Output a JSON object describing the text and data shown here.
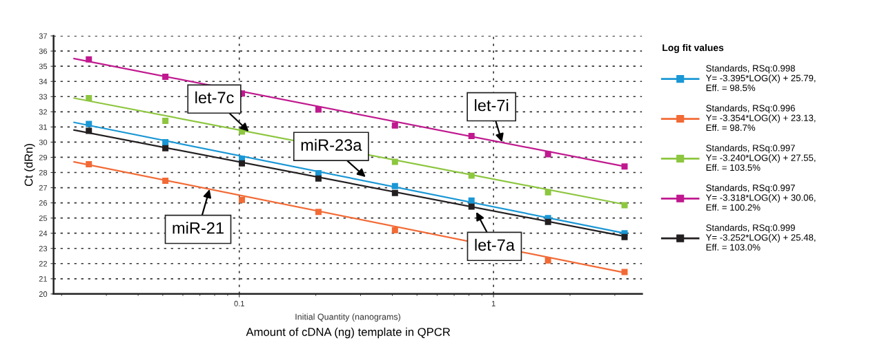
{
  "chart_data": {
    "type": "scatter",
    "xlabel": "Initial Quantity (nanograms)",
    "ylabel": "Ct (dRn)",
    "legend_title": "Log fit values",
    "annotations": [
      "Amount of cDNA (ng) template in QPCR",
      {
        "text": "let-7c",
        "x": 0.109,
        "y": 30.7
      },
      {
        "text": "let-7i",
        "x": 1.08,
        "y": 30.0
      },
      {
        "text": "miR-23a",
        "x": 0.314,
        "y": 27.7
      },
      {
        "text": "miR-21",
        "x": 0.0764,
        "y": 26.9
      },
      {
        "text": "let-7a",
        "x": 0.855,
        "y": 25.4
      }
    ],
    "x": [
      0.0224,
      0.0256,
      0.0512,
      0.1024,
      0.2048,
      0.4096,
      0.8192,
      1.6384,
      3.2768
    ],
    "log": "x",
    "xlim": [
      0.0186,
      3.84
    ],
    "xticks": [
      0.1,
      1
    ],
    "ylim": [
      20,
      37
    ],
    "yticks": [
      20,
      21,
      22,
      23,
      24,
      25,
      26,
      27,
      28,
      29,
      30,
      31,
      32,
      33,
      34,
      35,
      36,
      37
    ],
    "grid": true,
    "legend": "right",
    "series": [
      {
        "name": "Standards, RSq:0.998\nY= -3.395*LOG(X) + 25.79,\nEff. = 98.5%",
        "color": "#1a97d5",
        "marker": "square",
        "values": [
          null,
          31.2,
          30.0,
          28.9,
          27.95,
          27.1,
          26.15,
          25.0,
          24.0
        ]
      },
      {
        "name": "Standards, RSq:0.996\nY= -3.354*LOG(X) + 23.13,\nEff. = 98.7%",
        "color": "#f26a35",
        "marker": "square",
        "values": [
          null,
          28.55,
          27.45,
          26.2,
          25.4,
          24.2,
          null,
          22.2,
          21.45
        ]
      },
      {
        "name": "Standards, RSq:0.997\nY= -3.240*LOG(X) + 27.55,\nEff. = 103.5%",
        "color": "#8dc63f",
        "marker": "square",
        "values": [
          null,
          32.9,
          31.4,
          30.7,
          null,
          28.7,
          27.8,
          26.7,
          25.85
        ]
      },
      {
        "name": "Standards, RSq:0.997\nY= -3.318*LOG(X) + 30.06,\nEff. = 100.2%",
        "color": "#c0198f",
        "marker": "square",
        "values": [
          null,
          35.45,
          34.3,
          33.2,
          32.15,
          31.1,
          30.4,
          29.2,
          28.4
        ]
      },
      {
        "name": "Standards, RSq:0.999\nY= -3.252*LOG(X) + 25.48,\nEff. = 103.0%",
        "color": "#231f20",
        "marker": "square",
        "values": [
          null,
          30.75,
          29.6,
          28.6,
          27.6,
          26.65,
          25.75,
          24.75,
          23.75
        ]
      },
      {
        "type": "line",
        "color": "#1a97d5",
        "values": [
          31.3,
          null,
          null,
          null,
          null,
          null,
          null,
          null,
          24.0
        ]
      },
      {
        "type": "line",
        "color": "#f26a35",
        "values": [
          28.7,
          null,
          null,
          null,
          null,
          null,
          null,
          null,
          21.4
        ]
      },
      {
        "type": "line",
        "color": "#8dc63f",
        "values": [
          32.9,
          null,
          null,
          null,
          null,
          null,
          null,
          null,
          25.9
        ]
      },
      {
        "type": "line",
        "color": "#c0198f",
        "values": [
          35.5,
          null,
          null,
          null,
          null,
          null,
          null,
          null,
          28.4
        ]
      },
      {
        "type": "line",
        "color": "#231f20",
        "values": [
          30.8,
          null,
          null,
          null,
          null,
          null,
          null,
          null,
          23.8
        ]
      }
    ]
  }
}
